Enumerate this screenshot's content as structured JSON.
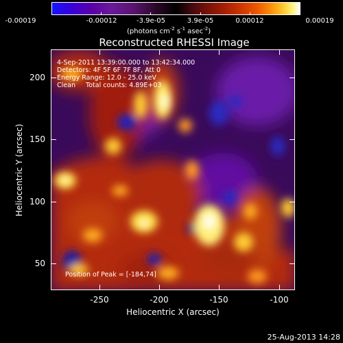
{
  "colorbar": {
    "tick_labels": [
      "-0.00019",
      "-0.00012",
      "-3.9e-05",
      "3.9e-05",
      "0.00012",
      "0.00019"
    ],
    "units_label": "(photons cm",
    "units_sup1": "-2",
    "units_mid": " s",
    "units_sup2": "-1",
    "units_mid2": " asec",
    "units_sup3": "-2",
    "units_end": ")"
  },
  "title": "Reconstructed RHESSI Image",
  "annotations": {
    "time_range": "4-Sep-2011 13:39:00.000 to 13:42:34.000",
    "detectors": "Detectors: 4F 5F 6F 7F 8F, Att 0",
    "energy": "Energy Range: 12.0 - 25.0 keV",
    "clean": "Clean     Total counts: 4.89E+03",
    "peak": "Position of Peak = [-184,74]"
  },
  "x_axis": {
    "label": "Heliocentric X (arcsec)",
    "tick_labels": [
      "-250",
      "-200",
      "-150",
      "-100"
    ],
    "range": [
      -285,
      -95
    ]
  },
  "y_axis": {
    "label": "Heliocentric Y (arcsec)",
    "tick_labels": [
      "50",
      "100",
      "150",
      "200"
    ],
    "range": [
      28,
      222
    ]
  },
  "footer_timestamp": "25-Aug-2013 14:28",
  "colors": {
    "background": "#000000",
    "foreground": "#ffffff"
  }
}
